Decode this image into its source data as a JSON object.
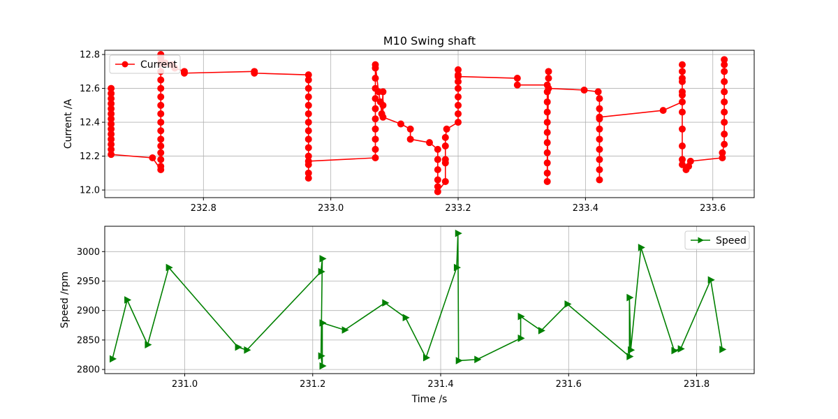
{
  "figure": {
    "title": "M10 Swing shaft"
  },
  "chart_data": [
    {
      "type": "line",
      "title": "M10 Swing shaft",
      "xlabel": "",
      "ylabel": "Current /A",
      "xlim": [
        232.645,
        233.665
      ],
      "ylim": [
        11.955,
        12.825
      ],
      "xticks": [
        232.8,
        233.0,
        233.2,
        233.4,
        233.6
      ],
      "yticks": [
        12.0,
        12.2,
        12.4,
        12.6,
        12.8
      ],
      "grid": true,
      "legend": "upper-left",
      "series": [
        {
          "name": "Current",
          "color": "#ff0000",
          "marker": "circle",
          "points": [
            [
              232.655,
              12.6
            ],
            [
              232.655,
              12.57
            ],
            [
              232.655,
              12.54
            ],
            [
              232.655,
              12.51
            ],
            [
              232.655,
              12.48
            ],
            [
              232.655,
              12.45
            ],
            [
              232.655,
              12.42
            ],
            [
              232.655,
              12.39
            ],
            [
              232.655,
              12.36
            ],
            [
              232.655,
              12.33
            ],
            [
              232.655,
              12.3
            ],
            [
              232.655,
              12.27
            ],
            [
              232.655,
              12.24
            ],
            [
              232.655,
              12.21
            ],
            [
              232.72,
              12.19
            ],
            [
              232.733,
              12.12
            ],
            [
              232.733,
              12.14
            ],
            [
              232.733,
              12.18
            ],
            [
              232.733,
              12.22
            ],
            [
              232.733,
              12.26
            ],
            [
              232.733,
              12.3
            ],
            [
              232.733,
              12.35
            ],
            [
              232.733,
              12.4
            ],
            [
              232.733,
              12.45
            ],
            [
              232.733,
              12.5
            ],
            [
              232.733,
              12.55
            ],
            [
              232.733,
              12.6
            ],
            [
              232.733,
              12.65
            ],
            [
              232.733,
              12.7
            ],
            [
              232.733,
              12.75
            ],
            [
              232.733,
              12.78
            ],
            [
              232.733,
              12.8
            ],
            [
              232.74,
              12.75
            ],
            [
              232.75,
              12.74
            ],
            [
              232.755,
              12.72
            ],
            [
              232.77,
              12.7
            ],
            [
              232.77,
              12.69
            ],
            [
              232.88,
              12.7
            ],
            [
              232.88,
              12.69
            ],
            [
              232.965,
              12.68
            ],
            [
              232.965,
              12.65
            ],
            [
              232.965,
              12.6
            ],
            [
              232.965,
              12.55
            ],
            [
              232.965,
              12.5
            ],
            [
              232.965,
              12.45
            ],
            [
              232.965,
              12.4
            ],
            [
              232.965,
              12.35
            ],
            [
              232.965,
              12.3
            ],
            [
              232.965,
              12.25
            ],
            [
              232.965,
              12.2
            ],
            [
              232.965,
              12.15
            ],
            [
              232.965,
              12.1
            ],
            [
              232.965,
              12.07
            ],
            [
              232.965,
              12.17
            ],
            [
              233.07,
              12.19
            ],
            [
              233.07,
              12.24
            ],
            [
              233.07,
              12.3
            ],
            [
              233.07,
              12.36
            ],
            [
              233.07,
              12.42
            ],
            [
              233.07,
              12.48
            ],
            [
              233.07,
              12.54
            ],
            [
              233.07,
              12.6
            ],
            [
              233.07,
              12.66
            ],
            [
              233.07,
              12.72
            ],
            [
              233.07,
              12.74
            ],
            [
              233.075,
              12.58
            ],
            [
              233.078,
              12.52
            ],
            [
              233.08,
              12.45
            ],
            [
              233.082,
              12.58
            ],
            [
              233.082,
              12.5
            ],
            [
              233.082,
              12.43
            ],
            [
              233.11,
              12.39
            ],
            [
              233.125,
              12.36
            ],
            [
              233.125,
              12.3
            ],
            [
              233.155,
              12.28
            ],
            [
              233.168,
              12.24
            ],
            [
              233.168,
              12.18
            ],
            [
              233.168,
              12.12
            ],
            [
              233.168,
              12.06
            ],
            [
              233.168,
              12.02
            ],
            [
              233.168,
              11.99
            ],
            [
              233.18,
              12.05
            ],
            [
              233.18,
              12.16
            ],
            [
              233.18,
              12.18
            ],
            [
              233.18,
              12.26
            ],
            [
              233.18,
              12.31
            ],
            [
              233.182,
              12.36
            ],
            [
              233.2,
              12.4
            ],
            [
              233.2,
              12.45
            ],
            [
              233.2,
              12.5
            ],
            [
              233.2,
              12.55
            ],
            [
              233.2,
              12.6
            ],
            [
              233.2,
              12.64
            ],
            [
              233.2,
              12.68
            ],
            [
              233.2,
              12.71
            ],
            [
              233.2,
              12.67
            ],
            [
              233.293,
              12.66
            ],
            [
              233.293,
              12.62
            ],
            [
              233.34,
              12.62
            ],
            [
              233.34,
              12.58
            ],
            [
              233.34,
              12.52
            ],
            [
              233.34,
              12.46
            ],
            [
              233.34,
              12.4
            ],
            [
              233.34,
              12.34
            ],
            [
              233.34,
              12.28
            ],
            [
              233.34,
              12.22
            ],
            [
              233.34,
              12.16
            ],
            [
              233.34,
              12.1
            ],
            [
              233.34,
              12.05
            ],
            [
              233.342,
              12.7
            ],
            [
              233.342,
              12.66
            ],
            [
              233.342,
              12.6
            ],
            [
              233.398,
              12.59
            ],
            [
              233.42,
              12.58
            ],
            [
              233.422,
              12.54
            ],
            [
              233.422,
              12.48
            ],
            [
              233.422,
              12.42
            ],
            [
              233.422,
              12.36
            ],
            [
              233.422,
              12.3
            ],
            [
              233.422,
              12.24
            ],
            [
              233.422,
              12.18
            ],
            [
              233.422,
              12.12
            ],
            [
              233.422,
              12.06
            ],
            [
              233.422,
              12.43
            ],
            [
              233.522,
              12.47
            ],
            [
              233.552,
              12.52
            ],
            [
              233.552,
              12.58
            ],
            [
              233.552,
              12.64
            ],
            [
              233.552,
              12.7
            ],
            [
              233.552,
              12.74
            ],
            [
              233.552,
              12.66
            ],
            [
              233.552,
              12.56
            ],
            [
              233.552,
              12.46
            ],
            [
              233.552,
              12.36
            ],
            [
              233.552,
              12.26
            ],
            [
              233.552,
              12.18
            ],
            [
              233.552,
              12.15
            ],
            [
              233.558,
              12.12
            ],
            [
              233.562,
              12.14
            ],
            [
              233.565,
              12.17
            ],
            [
              233.615,
              12.19
            ],
            [
              233.615,
              12.22
            ],
            [
              233.618,
              12.27
            ],
            [
              233.618,
              12.33
            ],
            [
              233.618,
              12.4
            ],
            [
              233.618,
              12.46
            ],
            [
              233.618,
              12.52
            ],
            [
              233.618,
              12.58
            ],
            [
              233.618,
              12.64
            ],
            [
              233.618,
              12.7
            ],
            [
              233.618,
              12.74
            ],
            [
              233.618,
              12.77
            ]
          ]
        }
      ]
    },
    {
      "type": "line",
      "title": "",
      "xlabel": "Time /s",
      "ylabel": "Speed /rpm",
      "xlim": [
        230.875,
        231.89
      ],
      "ylim": [
        2793,
        3043
      ],
      "xticks": [
        231.0,
        231.2,
        231.4,
        231.6,
        231.8
      ],
      "yticks": [
        2800,
        2850,
        2900,
        2950,
        3000
      ],
      "grid": true,
      "legend": "upper-right",
      "series": [
        {
          "name": "Speed",
          "color": "#008000",
          "marker": "triangle-right",
          "points": [
            [
              230.887,
              2818
            ],
            [
              230.91,
              2918
            ],
            [
              230.942,
              2842
            ],
            [
              230.975,
              2973
            ],
            [
              231.083,
              2838
            ],
            [
              231.097,
              2833
            ],
            [
              231.213,
              2966
            ],
            [
              231.215,
              2988
            ],
            [
              231.213,
              2823
            ],
            [
              231.215,
              2806
            ],
            [
              231.215,
              2879
            ],
            [
              231.25,
              2867
            ],
            [
              231.313,
              2913
            ],
            [
              231.345,
              2888
            ],
            [
              231.377,
              2820
            ],
            [
              231.425,
              2973
            ],
            [
              231.427,
              3031
            ],
            [
              231.428,
              2815
            ],
            [
              231.457,
              2817
            ],
            [
              231.525,
              2853
            ],
            [
              231.525,
              2890
            ],
            [
              231.557,
              2866
            ],
            [
              231.598,
              2911
            ],
            [
              231.695,
              2822
            ],
            [
              231.695,
              2922
            ],
            [
              231.697,
              2833
            ],
            [
              231.713,
              3007
            ],
            [
              231.765,
              2832
            ],
            [
              231.775,
              2835
            ],
            [
              231.822,
              2952
            ],
            [
              231.84,
              2834
            ]
          ]
        }
      ]
    }
  ]
}
